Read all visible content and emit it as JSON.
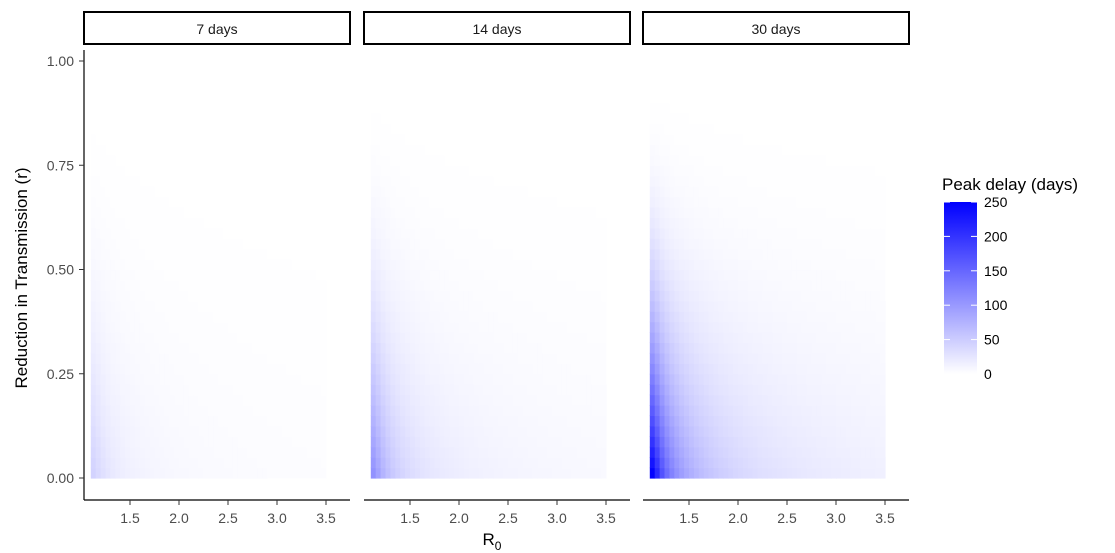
{
  "chart_data": {
    "type": "heatmap",
    "facets": [
      "7 days",
      "14 days",
      "30 days"
    ],
    "xlabel_main": "R",
    "xlabel_sub": "0",
    "ylabel": "Reduction in Transmission (r)",
    "x_range": [
      1.1,
      3.5
    ],
    "y_range": [
      0,
      1
    ],
    "x_ticks": [
      "1.5",
      "2.0",
      "2.5",
      "3.0",
      "3.5"
    ],
    "y_ticks": [
      "0.00",
      "0.25",
      "0.50",
      "0.75",
      "1.00"
    ],
    "legend": {
      "title": "Peak delay (days)",
      "labels": [
        "250",
        "200",
        "150",
        "100",
        "50",
        "0"
      ],
      "low_color": "#ffffff",
      "high_color": "#0000ff",
      "range": [
        0,
        250
      ]
    },
    "approx_max_delay_by_facet": [
      45,
      110,
      255
    ]
  }
}
